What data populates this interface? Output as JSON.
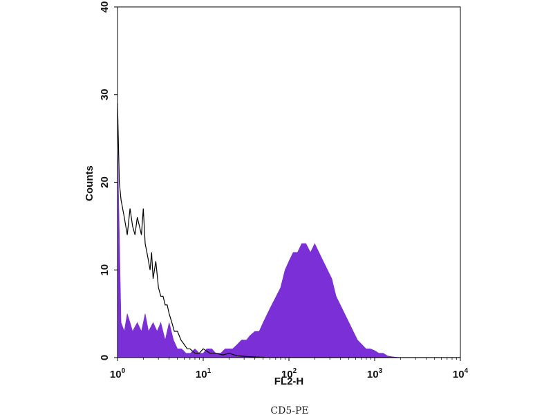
{
  "chart_data": {
    "type": "area",
    "xlabel": "FL2-H",
    "ylabel": "Counts",
    "caption": "CD5-PE",
    "x_scale": "log",
    "xlim": [
      1,
      10000
    ],
    "ylim": [
      0,
      40
    ],
    "x_ticks": [
      {
        "value": 1,
        "base": "10",
        "exp": "0"
      },
      {
        "value": 10,
        "base": "10",
        "exp": "1"
      },
      {
        "value": 100,
        "base": "10",
        "exp": "2"
      },
      {
        "value": 1000,
        "base": "10",
        "exp": "3"
      },
      {
        "value": 10000,
        "base": "10",
        "exp": "4"
      }
    ],
    "y_ticks": [
      {
        "value": 0,
        "label": "0"
      },
      {
        "value": 10,
        "label": "10"
      },
      {
        "value": 20,
        "label": "20"
      },
      {
        "value": 30,
        "label": "30"
      },
      {
        "value": 40,
        "label": "40"
      }
    ],
    "colors": {
      "stained": "#7b2fd6",
      "control": "#000000"
    },
    "series": [
      {
        "role": "stained",
        "style": "filled",
        "x": [
          1.0,
          1.1,
          1.2,
          1.3,
          1.4,
          1.5,
          1.7,
          1.9,
          2.1,
          2.3,
          2.6,
          2.9,
          3.2,
          3.6,
          4.0,
          4.5,
          5.0,
          5.6,
          6.3,
          7.1,
          8.0,
          9.0,
          10,
          11,
          12.6,
          14,
          16,
          18,
          20,
          22,
          25,
          28,
          32,
          35,
          40,
          45,
          50,
          56,
          63,
          71,
          80,
          90,
          100,
          112,
          126,
          141,
          158,
          178,
          200,
          224,
          251,
          282,
          316,
          355,
          398,
          447,
          501,
          562,
          631,
          708,
          794,
          891,
          1000,
          1122,
          1259,
          1413,
          1585,
          2000,
          5000,
          10000
        ],
        "y": [
          25,
          4,
          3,
          5,
          4,
          3,
          4,
          3,
          5,
          3,
          4,
          3,
          4,
          2,
          4,
          2,
          1,
          1,
          0.5,
          0.5,
          1,
          0.5,
          0.5,
          1,
          1,
          0.5,
          0.5,
          1,
          1,
          1,
          1.5,
          2,
          2,
          2.5,
          3,
          3,
          4,
          5,
          6,
          7,
          8,
          10,
          11,
          12,
          12,
          13,
          13,
          12,
          13,
          12,
          11,
          10,
          9,
          7,
          6,
          5,
          4,
          3,
          2,
          1.5,
          1,
          1,
          0.8,
          0.5,
          0.5,
          0.2,
          0.1,
          0,
          0,
          0
        ]
      },
      {
        "role": "control",
        "style": "line",
        "x": [
          1.0,
          1.05,
          1.1,
          1.2,
          1.3,
          1.4,
          1.5,
          1.6,
          1.7,
          1.8,
          1.9,
          2.0,
          2.1,
          2.2,
          2.3,
          2.4,
          2.5,
          2.6,
          2.8,
          3.0,
          3.2,
          3.4,
          3.6,
          3.8,
          4.0,
          4.3,
          4.6,
          5.0,
          5.5,
          6.0,
          6.5,
          7.0,
          8.0,
          9.0,
          10,
          12,
          14,
          17,
          20,
          25,
          35,
          60,
          100,
          200,
          500,
          1000,
          3000,
          10000
        ],
        "y": [
          29,
          20,
          18,
          16,
          14,
          17,
          15,
          14,
          16,
          15,
          14,
          17,
          13,
          12,
          11,
          10,
          12,
          9,
          11,
          8,
          7,
          7,
          6,
          6,
          5,
          4,
          3,
          3,
          2,
          1.5,
          1,
          1,
          0.5,
          0.5,
          1,
          0.5,
          0.5,
          0.3,
          0.5,
          0.2,
          0.1,
          0,
          0,
          0,
          0,
          0,
          0,
          0
        ]
      }
    ]
  }
}
